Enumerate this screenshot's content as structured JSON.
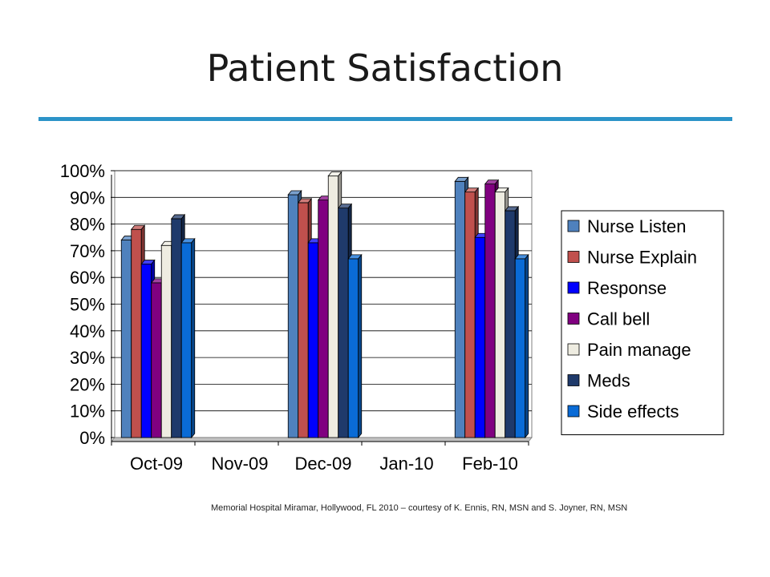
{
  "slide": {
    "title": "Patient Satisfaction",
    "credit": "Memorial Hospital Miramar, Hollywood, FL 2010 – courtesy of K. Ennis, RN, MSN and S. Joyner, RN, MSN",
    "rule_color": "#2c93c8"
  },
  "chart_data": {
    "type": "bar",
    "style": "3d-clustered-column",
    "categories": [
      "Oct-09",
      "Nov-09",
      "Dec-09",
      "Jan-10",
      "Feb-10"
    ],
    "y_ticks": [
      "0%",
      "10%",
      "20%",
      "30%",
      "40%",
      "50%",
      "60%",
      "70%",
      "80%",
      "90%",
      "100%"
    ],
    "ylim": [
      0,
      100
    ],
    "grid": true,
    "legend_position": "right",
    "series": [
      {
        "name": "Nurse Listen",
        "color": "#4f81bd",
        "values": [
          74,
          null,
          91,
          null,
          96
        ]
      },
      {
        "name": "Nurse Explain",
        "color": "#c0504d",
        "values": [
          78,
          null,
          88,
          null,
          92
        ]
      },
      {
        "name": "Response",
        "color": "#0000ff",
        "values": [
          65,
          null,
          73,
          null,
          75
        ]
      },
      {
        "name": "Call bell",
        "color": "#800080",
        "values": [
          58,
          null,
          89,
          null,
          95
        ]
      },
      {
        "name": "Pain manage",
        "color": "#eeece1",
        "values": [
          72,
          null,
          98,
          null,
          92
        ]
      },
      {
        "name": "Meds",
        "color": "#1f3a6b",
        "values": [
          82,
          null,
          86,
          null,
          85
        ]
      },
      {
        "name": "Side effects",
        "color": "#0a6bd6",
        "values": [
          73,
          null,
          67,
          null,
          67
        ]
      }
    ]
  }
}
